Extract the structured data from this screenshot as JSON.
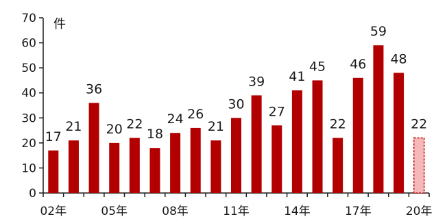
{
  "chart_data": {
    "type": "bar",
    "unit_label": "件",
    "categories": [
      "02",
      "03",
      "04",
      "05",
      "06",
      "07",
      "08",
      "09",
      "10",
      "11",
      "12",
      "13",
      "14",
      "15",
      "16",
      "17",
      "18",
      "19",
      "20"
    ],
    "x_tick_labels": [
      "02年",
      "05年",
      "08年",
      "11年",
      "14年",
      "17年",
      "20年"
    ],
    "x_tick_categories": [
      "02",
      "05",
      "08",
      "11",
      "14",
      "17",
      "20"
    ],
    "values": [
      17,
      21,
      36,
      20,
      22,
      18,
      24,
      26,
      21,
      30,
      39,
      27,
      41,
      45,
      22,
      46,
      59,
      48,
      22
    ],
    "y_ticks": [
      0,
      10,
      20,
      30,
      40,
      50,
      60,
      70
    ],
    "ylim": [
      0,
      70
    ],
    "highlighted_last_bar": true,
    "grid": false,
    "colors": {
      "bar": "#b20000",
      "highlight_fill": "#f5b7b7",
      "highlight_stroke": "#c00000",
      "axis": "#1a1a1a"
    }
  }
}
